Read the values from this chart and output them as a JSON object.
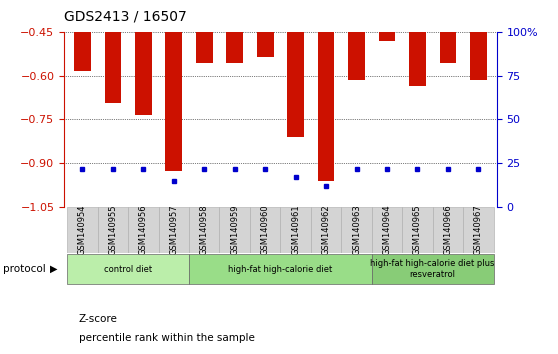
{
  "title": "GDS2413 / 16507",
  "samples": [
    "GSM140954",
    "GSM140955",
    "GSM140956",
    "GSM140957",
    "GSM140958",
    "GSM140959",
    "GSM140960",
    "GSM140961",
    "GSM140962",
    "GSM140963",
    "GSM140964",
    "GSM140965",
    "GSM140966",
    "GSM140967"
  ],
  "z_scores": [
    -0.585,
    -0.695,
    -0.735,
    -0.925,
    -0.555,
    -0.555,
    -0.535,
    -0.81,
    -0.96,
    -0.615,
    -0.48,
    -0.635,
    -0.555,
    -0.615
  ],
  "percentile_ranks": [
    22,
    22,
    22,
    15,
    22,
    22,
    22,
    17,
    12,
    22,
    22,
    22,
    22,
    22
  ],
  "bar_color": "#cc1100",
  "dot_color": "#0000cc",
  "ylim_left": [
    -1.05,
    -0.45
  ],
  "ylim_right": [
    0,
    100
  ],
  "yticks_left": [
    -1.05,
    -0.9,
    -0.75,
    -0.6,
    -0.45
  ],
  "yticks_right": [
    0,
    25,
    50,
    75,
    100
  ],
  "groups": [
    {
      "label": "control diet",
      "start": 0,
      "end": 4,
      "color": "#bbeeaa"
    },
    {
      "label": "high-fat high-calorie diet",
      "start": 4,
      "end": 10,
      "color": "#99dd88"
    },
    {
      "label": "high-fat high-calorie diet plus\nresveratrol",
      "start": 10,
      "end": 14,
      "color": "#88cc77"
    }
  ],
  "protocol_label": "protocol",
  "legend_zscore": "Z-score",
  "legend_percentile": "percentile rank within the sample",
  "background_color": "#ffffff",
  "tick_label_color_left": "#cc1100",
  "tick_label_color_right": "#0000cc",
  "bar_width": 0.55,
  "ytick_label_fontsize": 8,
  "xtick_label_fontsize": 6.5
}
